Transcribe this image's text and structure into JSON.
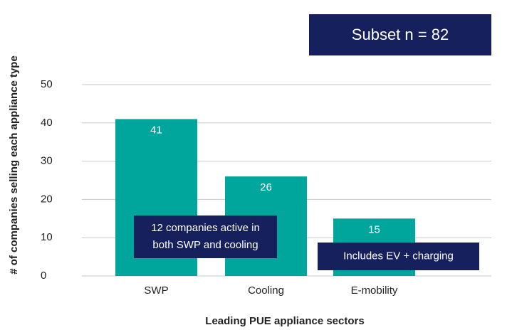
{
  "chart_data": {
    "type": "bar",
    "x_label": "Leading PUE appliance sectors",
    "y_label": "# of companies selling each appliance type",
    "categories": [
      "SWP",
      "Cooling",
      "E-mobility"
    ],
    "values": [
      41,
      26,
      15
    ],
    "color": "#00a69c",
    "ylim": [
      0,
      50
    ],
    "yticks": [
      0,
      10,
      20,
      30,
      40,
      50
    ],
    "grid": true,
    "badge": "Subset n = 82",
    "annotations": [
      [
        "12 companies active in",
        "both SWP and cooling"
      ],
      [
        "Includes EV + charging"
      ]
    ]
  }
}
